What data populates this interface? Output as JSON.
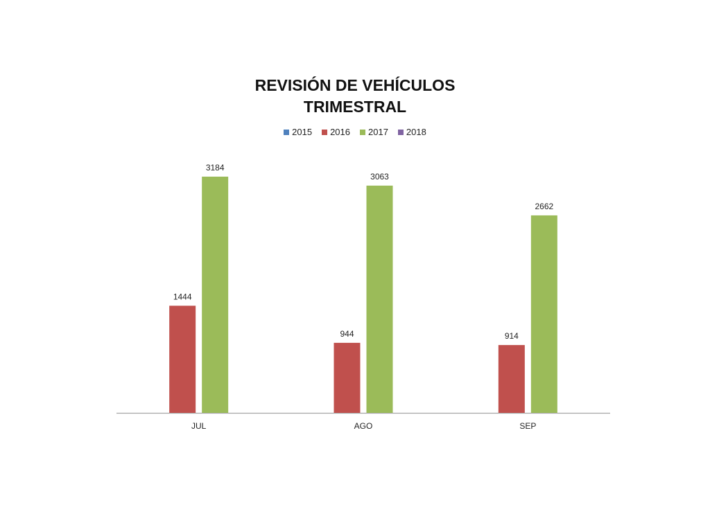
{
  "chart_data": {
    "type": "bar",
    "title_lines": [
      "REVISIÓN DE VEHÍCULOS",
      "TRIMESTRAL"
    ],
    "categories": [
      "JUL",
      "AGO",
      "SEP"
    ],
    "series": [
      {
        "name": "2015",
        "color": "#4f81bd",
        "values": [
          null,
          null,
          null
        ]
      },
      {
        "name": "2016",
        "color": "#c0504d",
        "values": [
          1444,
          944,
          914
        ]
      },
      {
        "name": "2017",
        "color": "#9bbb59",
        "values": [
          3184,
          3063,
          2662
        ]
      },
      {
        "name": "2018",
        "color": "#8064a2",
        "values": [
          null,
          null,
          null
        ]
      }
    ],
    "ylim": [
      0,
      3184
    ],
    "data_labels": true,
    "legend_position": "top",
    "grid": false
  }
}
